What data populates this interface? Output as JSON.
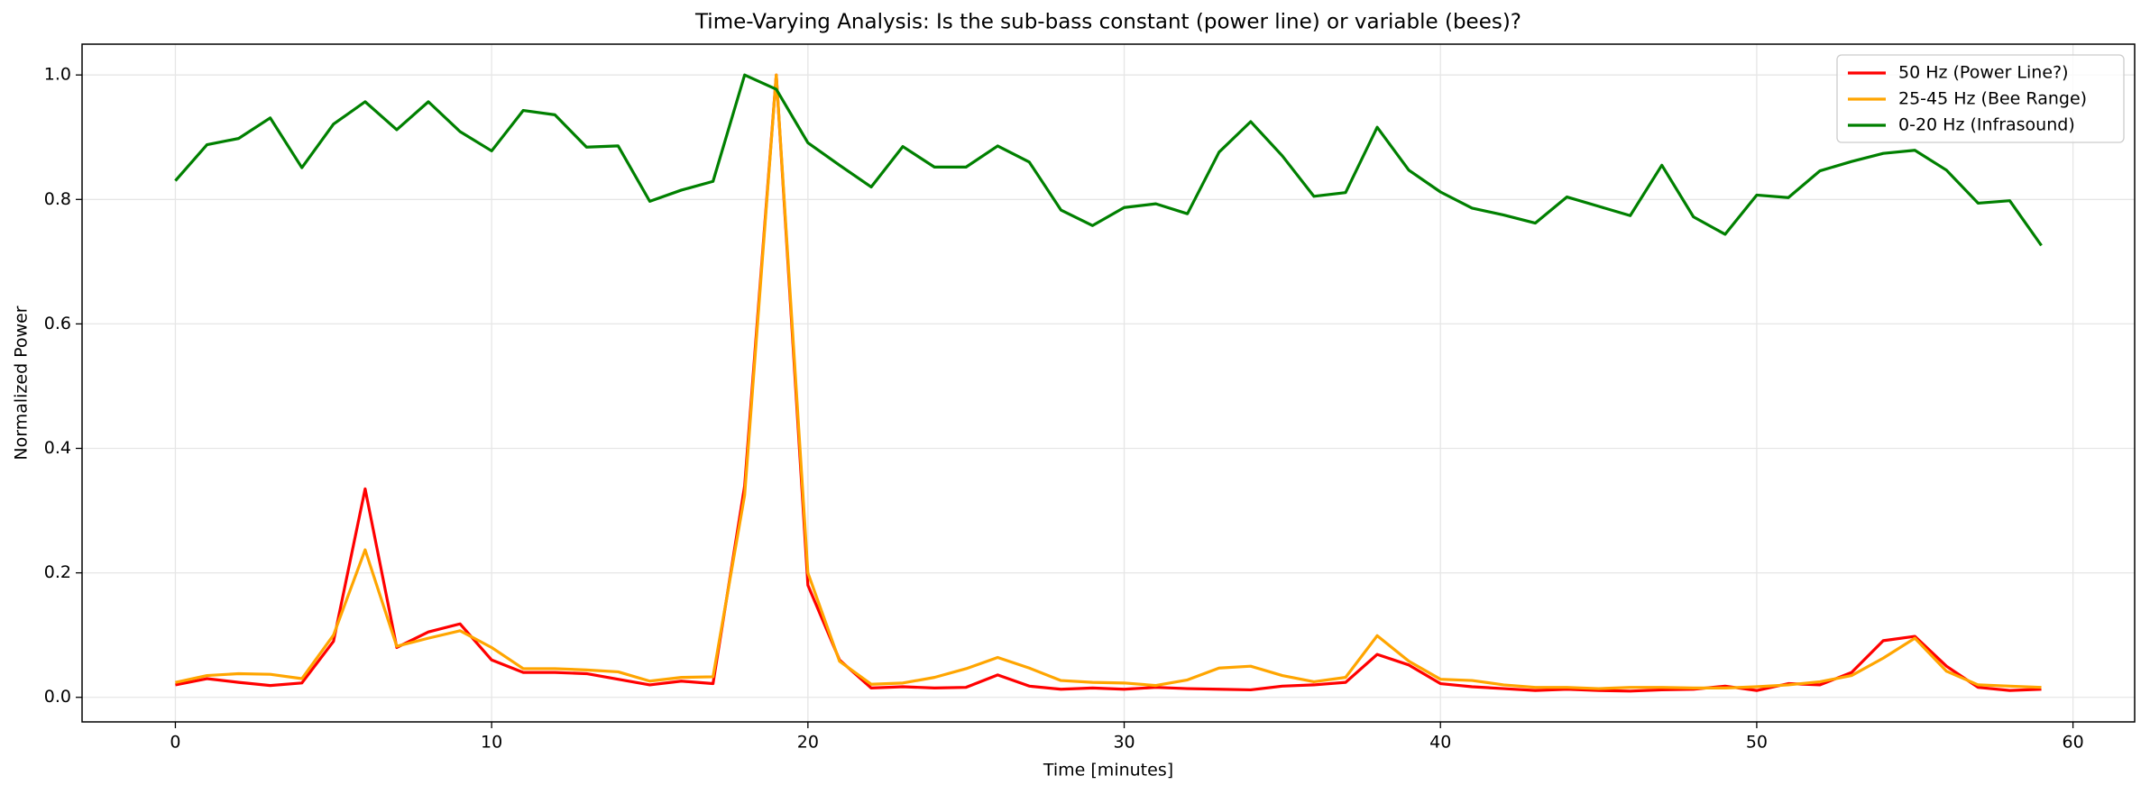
{
  "chart_data": {
    "type": "line",
    "title": "Time-Varying Analysis: Is the sub-bass constant (power line) or variable (bees)?",
    "xlabel": "Time [minutes]",
    "ylabel": "Normalized Power",
    "x": [
      0,
      1,
      2,
      3,
      4,
      5,
      6,
      7,
      8,
      9,
      10,
      11,
      12,
      13,
      14,
      15,
      16,
      17,
      18,
      19,
      20,
      21,
      22,
      23,
      24,
      25,
      26,
      27,
      28,
      29,
      30,
      31,
      32,
      33,
      34,
      35,
      36,
      37,
      38,
      39,
      40,
      41,
      42,
      43,
      44,
      45,
      46,
      47,
      48,
      49,
      50,
      51,
      52,
      53,
      54,
      55,
      56,
      57,
      58,
      59
    ],
    "series": [
      {
        "name": "50 Hz (Power Line?)",
        "color": "#ff0000",
        "values": [
          0.02,
          0.03,
          0.024,
          0.019,
          0.023,
          0.09,
          0.335,
          0.08,
          0.105,
          0.118,
          0.06,
          0.04,
          0.04,
          0.038,
          0.029,
          0.02,
          0.026,
          0.022,
          0.34,
          1.0,
          0.18,
          0.06,
          0.015,
          0.017,
          0.015,
          0.016,
          0.036,
          0.018,
          0.013,
          0.015,
          0.013,
          0.016,
          0.014,
          0.013,
          0.012,
          0.018,
          0.02,
          0.024,
          0.069,
          0.052,
          0.022,
          0.017,
          0.014,
          0.011,
          0.013,
          0.011,
          0.01,
          0.012,
          0.013,
          0.018,
          0.011,
          0.022,
          0.02,
          0.04,
          0.091,
          0.098,
          0.05,
          0.016,
          0.011,
          0.013
        ]
      },
      {
        "name": "25-45 Hz (Bee Range)",
        "color": "#ffa500",
        "values": [
          0.024,
          0.035,
          0.038,
          0.037,
          0.03,
          0.1,
          0.237,
          0.082,
          0.095,
          0.107,
          0.08,
          0.046,
          0.046,
          0.044,
          0.041,
          0.026,
          0.032,
          0.033,
          0.325,
          1.0,
          0.2,
          0.058,
          0.021,
          0.023,
          0.032,
          0.046,
          0.064,
          0.047,
          0.027,
          0.024,
          0.023,
          0.019,
          0.028,
          0.047,
          0.05,
          0.035,
          0.025,
          0.032,
          0.099,
          0.058,
          0.029,
          0.027,
          0.02,
          0.016,
          0.016,
          0.014,
          0.016,
          0.016,
          0.015,
          0.015,
          0.017,
          0.02,
          0.025,
          0.035,
          0.063,
          0.095,
          0.042,
          0.02,
          0.018,
          0.016
        ]
      },
      {
        "name": "0-20 Hz (Infrasound)",
        "color": "#008000",
        "values": [
          0.83,
          0.888,
          0.898,
          0.931,
          0.851,
          0.921,
          0.957,
          0.912,
          0.957,
          0.909,
          0.878,
          0.943,
          0.936,
          0.884,
          0.886,
          0.797,
          0.815,
          0.829,
          1.0,
          0.977,
          0.891,
          0.855,
          0.82,
          0.885,
          0.852,
          0.852,
          0.886,
          0.86,
          0.783,
          0.758,
          0.787,
          0.793,
          0.777,
          0.876,
          0.925,
          0.87,
          0.805,
          0.811,
          0.916,
          0.847,
          0.812,
          0.786,
          0.775,
          0.762,
          0.804,
          0.789,
          0.774,
          0.855,
          0.772,
          0.744,
          0.807,
          0.803,
          0.846,
          0.861,
          0.874,
          0.879,
          0.847,
          0.794,
          0.798,
          0.726
        ]
      }
    ],
    "xlim": [
      -2.95,
      61.95
    ],
    "ylim": [
      -0.0395,
      1.0495
    ],
    "xticks": [
      0,
      10,
      20,
      30,
      40,
      50,
      60
    ],
    "yticks": [
      {
        "value": 0,
        "label": "0.0"
      },
      0.2,
      0.4,
      0.6,
      0.8,
      {
        "value": 1,
        "label": "1.0"
      }
    ],
    "grid": true,
    "legend": "upper right"
  }
}
